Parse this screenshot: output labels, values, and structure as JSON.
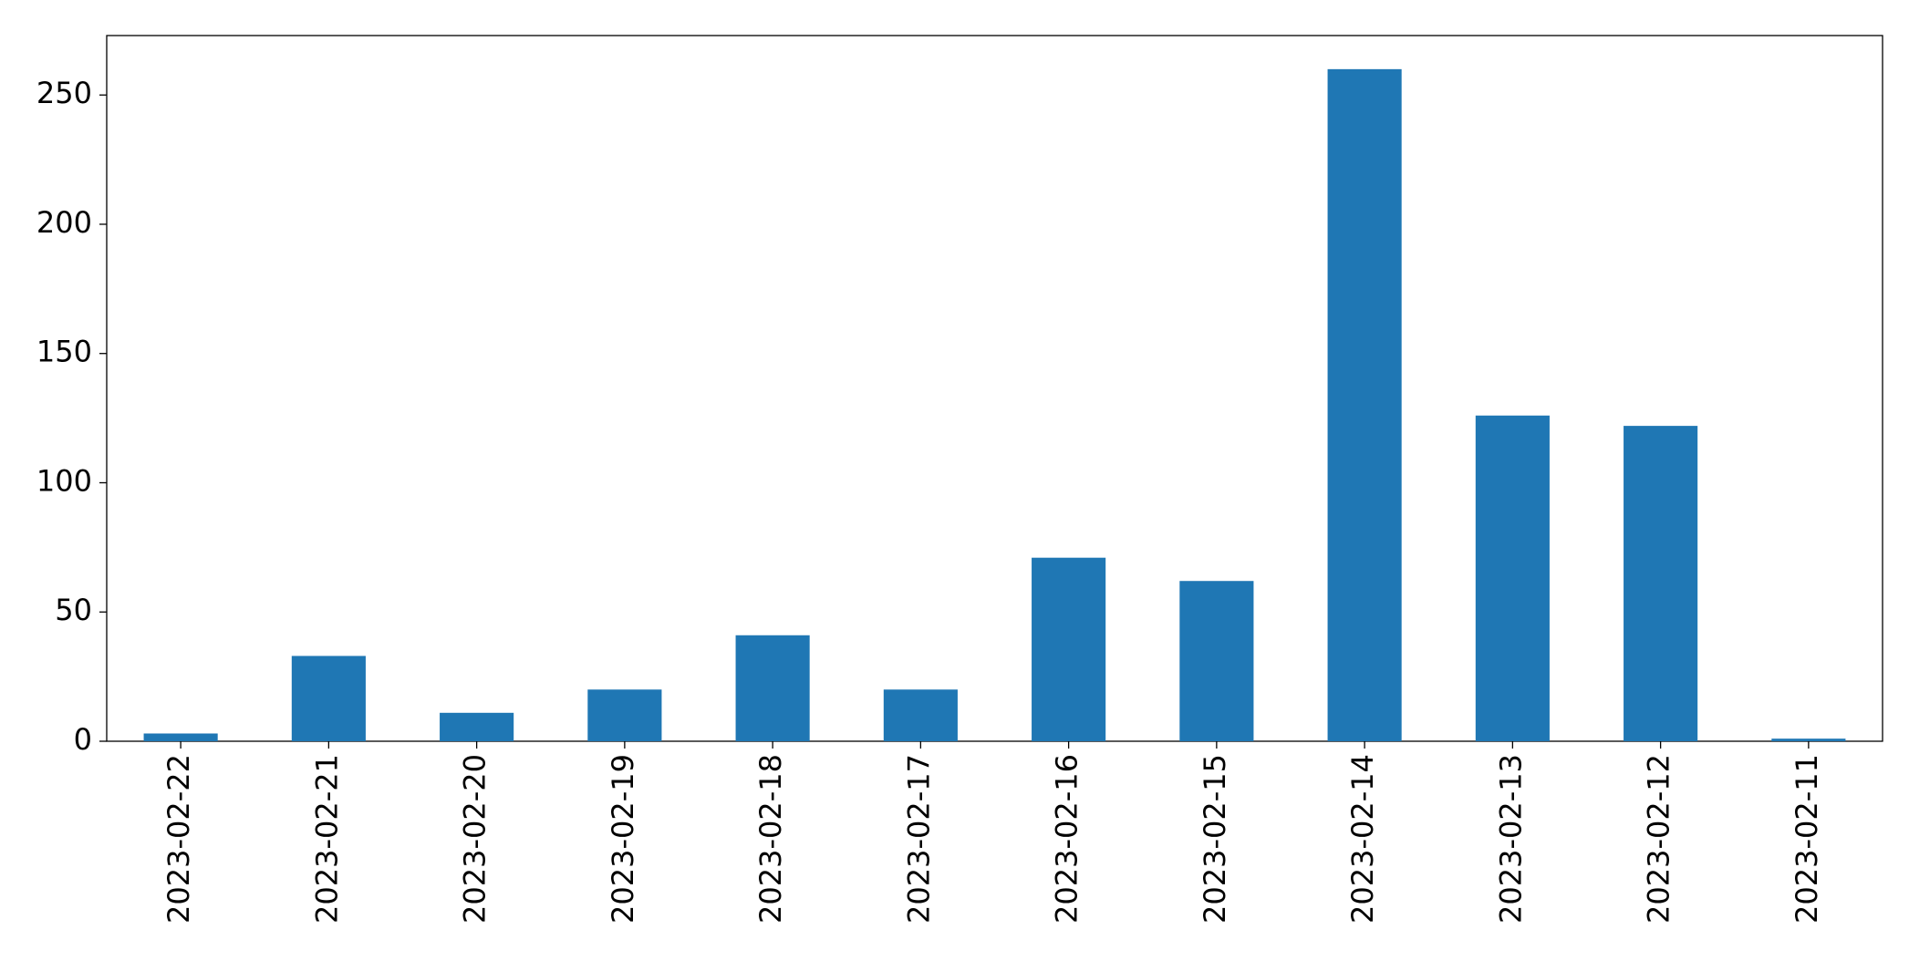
{
  "chart_data": {
    "type": "bar",
    "categories": [
      "2023-02-22",
      "2023-02-21",
      "2023-02-20",
      "2023-02-19",
      "2023-02-18",
      "2023-02-17",
      "2023-02-16",
      "2023-02-15",
      "2023-02-14",
      "2023-02-13",
      "2023-02-12",
      "2023-02-11"
    ],
    "values": [
      3,
      33,
      11,
      20,
      41,
      20,
      71,
      62,
      260,
      126,
      122,
      1
    ],
    "color": "#1f77b4",
    "ylim": [
      0,
      273
    ],
    "yticks": [
      0,
      50,
      100,
      150,
      200,
      250
    ],
    "grid": false
  }
}
